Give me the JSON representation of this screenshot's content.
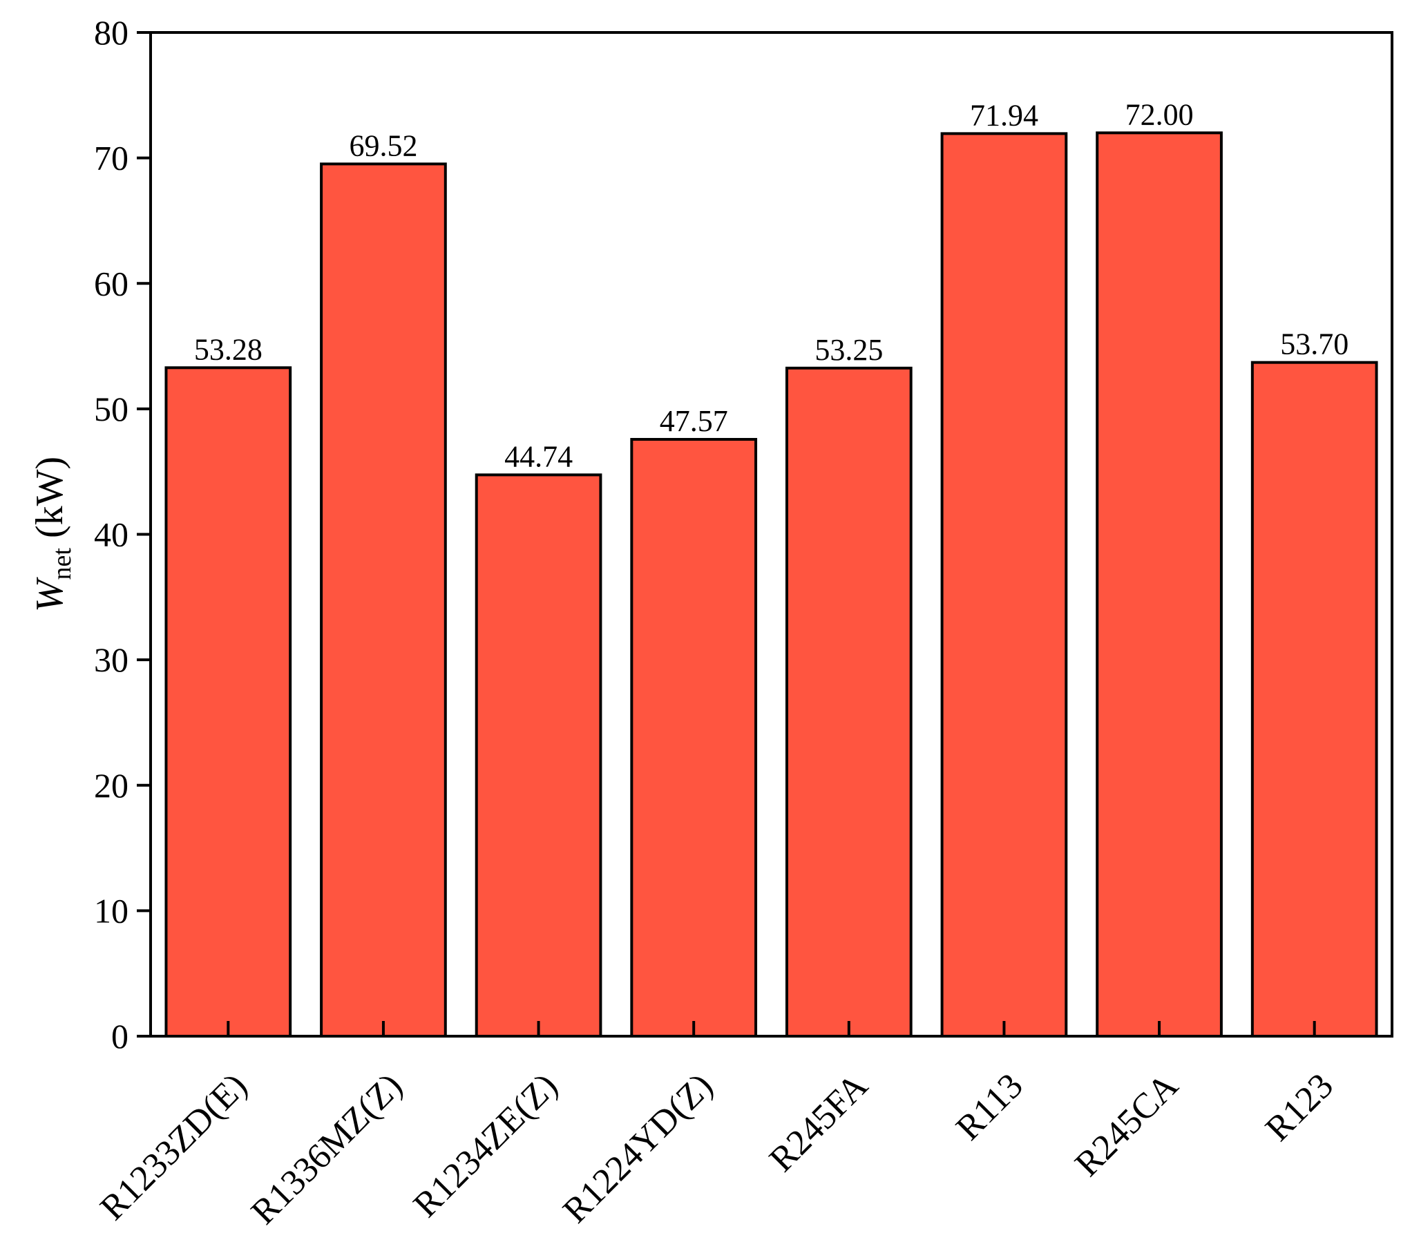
{
  "chart_data": {
    "type": "bar",
    "title": "",
    "ylabel": {
      "symbol": "W",
      "subscript": "net",
      "unit": "(kW)"
    },
    "xlabel": "",
    "ylim": [
      0,
      80
    ],
    "yticks": [
      0,
      10,
      20,
      30,
      40,
      50,
      60,
      70,
      80
    ],
    "categories": [
      "R1233ZD(E)",
      "R1336MZ(Z)",
      "R1234ZE(Z)",
      "R1224YD(Z)",
      "R245FA",
      "R113",
      "R245CA",
      "R123"
    ],
    "values": [
      53.28,
      69.52,
      44.74,
      47.57,
      53.25,
      71.94,
      72.0,
      53.7
    ],
    "value_labels": [
      "53.28",
      "69.52",
      "44.74",
      "47.57",
      "53.25",
      "71.94",
      "72.00",
      "53.70"
    ],
    "bar_color": "#FF5540",
    "edge_color": "#000000",
    "grid": false,
    "legend": "none"
  }
}
